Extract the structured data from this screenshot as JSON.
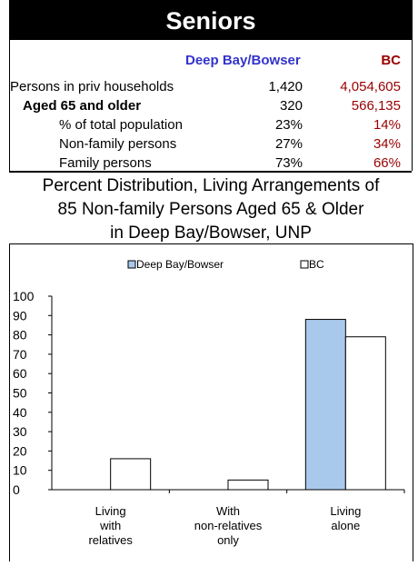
{
  "title": "Seniors",
  "table": {
    "col_headers": [
      "Deep Bay/Bowser",
      "BC"
    ],
    "rows": [
      {
        "label": "Persons in priv households",
        "local": "1,420",
        "bc": "4,054,605",
        "bold": false,
        "indent": 0
      },
      {
        "label": "Aged 65 and older",
        "local": "320",
        "bc": "566,135",
        "bold": true,
        "indent": 1
      },
      {
        "label": "% of total population",
        "local": "23%",
        "bc": "14%",
        "bold": false,
        "indent": 2
      },
      {
        "label": "Non-family persons",
        "local": "27%",
        "bc": "34%",
        "bold": false,
        "indent": 2
      },
      {
        "label": "Family persons",
        "local": "73%",
        "bc": "66%",
        "bold": false,
        "indent": 2
      }
    ]
  },
  "chart_title_lines": [
    "Percent Distribution, Living Arrangements of",
    "85 Non-family Persons Aged 65 & Older",
    "in Deep Bay/Bowser, UNP"
  ],
  "colors": {
    "local_bar": "#a9c9ec",
    "bc_bar": "#ffffff",
    "text_blue": "#3333cc",
    "text_red": "#990000"
  },
  "chart_data": {
    "type": "bar",
    "categories": [
      [
        "Living",
        "with",
        "relatives"
      ],
      [
        "With",
        "non-relatives",
        "only"
      ],
      [
        "Living",
        "alone"
      ]
    ],
    "series": [
      {
        "name": "Deep Bay/Bowser",
        "values": [
          0,
          0,
          88
        ]
      },
      {
        "name": "BC",
        "values": [
          16,
          5,
          79
        ]
      }
    ],
    "ylim": [
      0,
      100
    ],
    "yticks": [
      "0",
      "10",
      "20",
      "30",
      "40",
      "50",
      "60",
      "70",
      "80",
      "90",
      "100"
    ],
    "legend": "top",
    "grid": false
  }
}
